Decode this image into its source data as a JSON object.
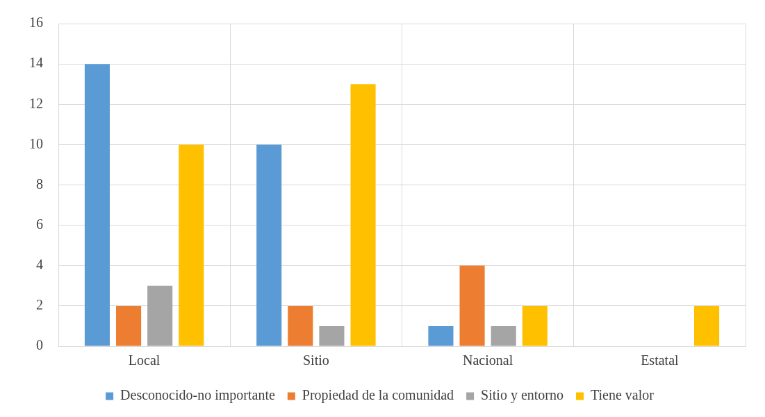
{
  "chart_data": {
    "type": "bar",
    "categories": [
      "Local",
      "Sitio",
      "Nacional",
      "Estatal"
    ],
    "series": [
      {
        "name": "Desconocido-no importante",
        "color": "#5b9bd5",
        "values": [
          14,
          10,
          1,
          0
        ]
      },
      {
        "name": "Propiedad de la comunidad",
        "color": "#ed7d31",
        "values": [
          2,
          2,
          4,
          0
        ]
      },
      {
        "name": "Sitio y entorno",
        "color": "#a5a5a5",
        "values": [
          3,
          1,
          1,
          0
        ]
      },
      {
        "name": "Tiene valor",
        "color": "#ffc000",
        "values": [
          10,
          13,
          2,
          2
        ]
      }
    ],
    "ylim": [
      0,
      16
    ],
    "yticks": [
      0,
      2,
      4,
      6,
      8,
      10,
      12,
      14,
      16
    ],
    "grid": true,
    "legend": "bottom"
  }
}
